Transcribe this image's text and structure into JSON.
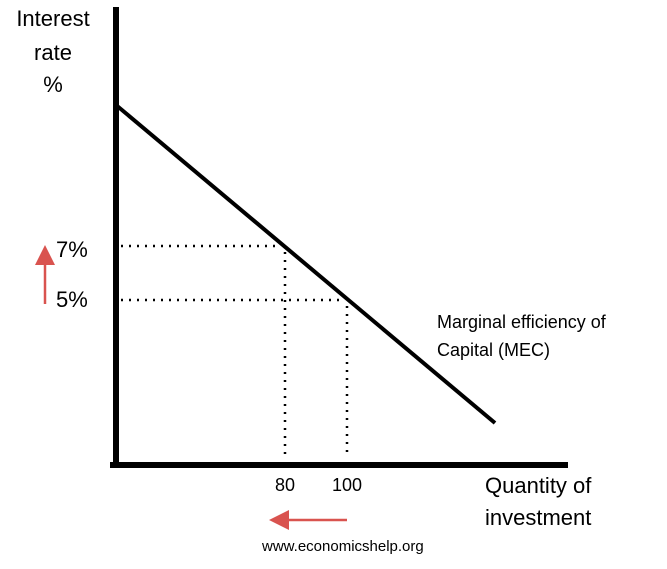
{
  "diagram": {
    "y_axis_label_line1": "Interest",
    "y_axis_label_line2": "rate",
    "y_axis_label_line3": "%",
    "x_axis_label_line1": "Quantity of",
    "x_axis_label_line2": "investment",
    "curve_label_line1": "Marginal efficiency of",
    "curve_label_line2": "Capital (MEC)",
    "rate_high": "7%",
    "rate_low": "5%",
    "qty_low": "80",
    "qty_high": "100",
    "source": "www.economicshelp.org",
    "line_color": "#000000",
    "arrow_color": "#d9534f",
    "rate_arrow_direction": "up",
    "quantity_arrow_direction": "left"
  }
}
